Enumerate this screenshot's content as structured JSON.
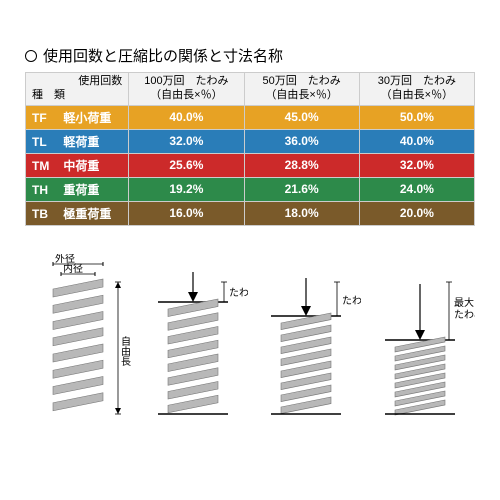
{
  "title": "使用回数と圧縮比の関係と寸法名称",
  "header": {
    "type_top": "使用回数",
    "type_bottom": "種　類",
    "col1_top": "100万回　たわみ",
    "col1_bottom": "（自由長×％）",
    "col2_top": "50万回　たわみ",
    "col2_bottom": "（自由長×％）",
    "col3_top": "30万回　たわみ",
    "col3_bottom": "（自由長×％）"
  },
  "rows": [
    {
      "code": "TF",
      "name": "軽小荷重",
      "color": "#e7a224",
      "v1": "40.0%",
      "v2": "45.0%",
      "v3": "50.0%"
    },
    {
      "code": "TL",
      "name": "軽荷重",
      "color": "#2a7db8",
      "v1": "32.0%",
      "v2": "36.0%",
      "v3": "40.0%"
    },
    {
      "code": "TM",
      "name": "中荷重",
      "color": "#cc2a2a",
      "v1": "25.6%",
      "v2": "28.8%",
      "v3": "32.0%"
    },
    {
      "code": "TH",
      "name": "重荷重",
      "color": "#2d8a4a",
      "v1": "19.2%",
      "v2": "21.6%",
      "v3": "24.0%"
    },
    {
      "code": "TB",
      "name": "極重荷重",
      "color": "#7a5a2a",
      "v1": "16.0%",
      "v2": "18.0%",
      "v3": "20.0%"
    }
  ],
  "diag_labels": {
    "outer": "外径",
    "inner": "内径",
    "free": "自由長",
    "deflect": "たわみ",
    "max_deflect": "最大",
    "max_deflect2": "たわみ"
  },
  "spring_color": "#b8b8b8",
  "spring_stroke": "#777777"
}
